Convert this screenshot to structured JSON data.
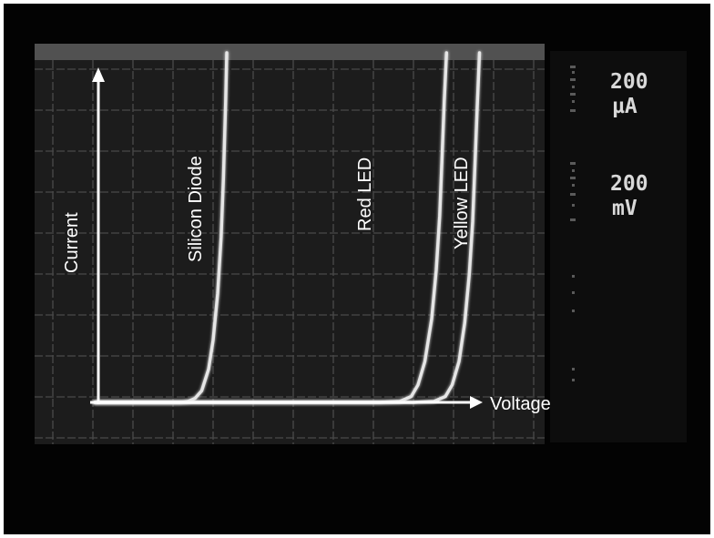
{
  "chart_data": {
    "type": "line",
    "title": "",
    "xlabel": "Voltage",
    "ylabel": "Current",
    "grid": true,
    "x_per_div": "200 mV",
    "y_per_div": "200 µA",
    "xlim": [
      0,
      2000
    ],
    "ylim": [
      0,
      1800
    ],
    "x_unit": "mV",
    "y_unit": "µA",
    "series": [
      {
        "name": "Silicon Diode",
        "color": "#e6e6e6",
        "x": [
          0,
          200,
          300,
          380,
          410,
          440,
          470,
          500,
          520,
          540,
          555,
          565,
          575,
          580
        ],
        "y": [
          0,
          0,
          0,
          0,
          5,
          20,
          60,
          170,
          320,
          560,
          850,
          1150,
          1550,
          1800
        ]
      },
      {
        "name": "Red LED",
        "color": "#e6e6e6",
        "x": [
          0,
          500,
          1000,
          1250,
          1340,
          1390,
          1420,
          1450,
          1480,
          1500,
          1515,
          1525,
          1535,
          1545
        ],
        "y": [
          0,
          0,
          0,
          0,
          5,
          30,
          90,
          210,
          430,
          680,
          960,
          1250,
          1550,
          1800
        ]
      },
      {
        "name": "Yellow LED",
        "color": "#e6e6e6",
        "x": [
          0,
          500,
          1000,
          1400,
          1490,
          1540,
          1570,
          1600,
          1625,
          1645,
          1660,
          1670,
          1680,
          1690
        ],
        "y": [
          0,
          0,
          0,
          0,
          5,
          30,
          90,
          210,
          410,
          660,
          930,
          1220,
          1520,
          1800
        ]
      }
    ]
  },
  "readouts": {
    "current_scale": {
      "value": "200",
      "unit": "µA"
    },
    "voltage_scale": {
      "value": "200",
      "unit": "mV"
    }
  }
}
